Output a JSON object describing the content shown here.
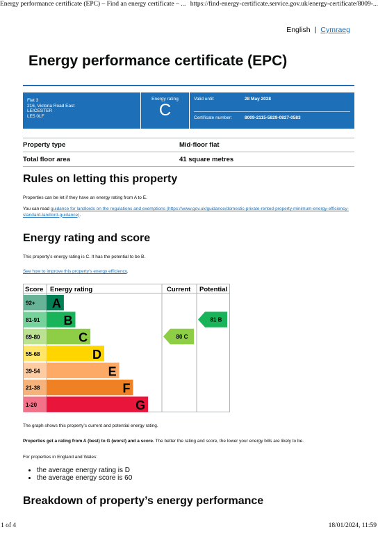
{
  "print": {
    "header_left": "Energy performance certificate (EPC) – Find an energy certificate – ...",
    "header_right": "https://find-energy-certificate.service.gov.uk/energy-certificate/8009-...",
    "footer_left": "1 of 4",
    "footer_right": "18/01/2024, 11:59"
  },
  "language": {
    "current": "English",
    "separator": "|",
    "alternate": "Cymraeg"
  },
  "title": "Energy performance certificate (EPC)",
  "certificate": {
    "address_lines": [
      "Flat 3",
      "216, Victoria Road East",
      "LEICESTER",
      "LE5 0LF"
    ],
    "rating_label": "Energy rating",
    "rating": "C",
    "valid_until_label": "Valid until:",
    "valid_until": "28 May 2028",
    "certificate_number_label": "Certificate number:",
    "certificate_number": "8009-2115-5829-0827-0583"
  },
  "property": [
    {
      "key": "Property type",
      "value": "Mid-floor flat"
    },
    {
      "key": "Total floor area",
      "value": "41 square metres"
    }
  ],
  "rules": {
    "heading": "Rules on letting this property",
    "p1": "Properties can be let if they have an energy rating from A to E.",
    "p2_prefix": "You can read ",
    "p2_link": "guidance for landlords on the regulations and exemptions (https://www.gov.uk/guidance/domestic-private-rented-property-minimum-energy-efficiency-standard-landlord-guidance)",
    "p2_suffix": "."
  },
  "energy": {
    "heading": "Energy rating and score",
    "p1": "This property’s energy rating is C. It has the potential to be B.",
    "link": "See how to improve this property’s energy efficiency",
    "link_suffix": ".",
    "graph_text": "The graph shows this property’s current and potential energy rating.",
    "bold_text": "Properties get a rating from A (best) to G (worst) and a score.",
    "rest_text": " The better the rating and score, the lower your energy bills are likely to be.",
    "ew_text": "For properties in England and Wales:",
    "bullets": [
      "the average energy rating is D",
      "the average energy score is 60"
    ]
  },
  "breakdown_heading": "Breakdown of property’s energy performance",
  "chart_data": {
    "type": "bar",
    "headers": {
      "score": "Score",
      "rating": "Energy rating",
      "current": "Current",
      "potential": "Potential"
    },
    "bands": [
      {
        "range": "92+",
        "letter": "A",
        "color": "#008054",
        "light": "#66b398",
        "width": 0.15
      },
      {
        "range": "81-91",
        "letter": "B",
        "color": "#19b459",
        "light": "#75d29b",
        "width": 0.25
      },
      {
        "range": "69-80",
        "letter": "C",
        "color": "#8dce46",
        "light": "#bbe290",
        "width": 0.38
      },
      {
        "range": "55-68",
        "letter": "D",
        "color": "#ffd500",
        "light": "#ffe666",
        "width": 0.5
      },
      {
        "range": "39-54",
        "letter": "E",
        "color": "#fcaa65",
        "light": "#fdcca3",
        "width": 0.63
      },
      {
        "range": "21-38",
        "letter": "F",
        "color": "#ef8023",
        "light": "#f5b37b",
        "width": 0.75
      },
      {
        "range": "1-20",
        "letter": "G",
        "color": "#e9153b",
        "light": "#f27389",
        "width": 0.88
      }
    ],
    "current": {
      "score": 80,
      "letter": "C",
      "label": "80  C"
    },
    "potential": {
      "score": 81,
      "letter": "B",
      "label": "81  B"
    }
  }
}
